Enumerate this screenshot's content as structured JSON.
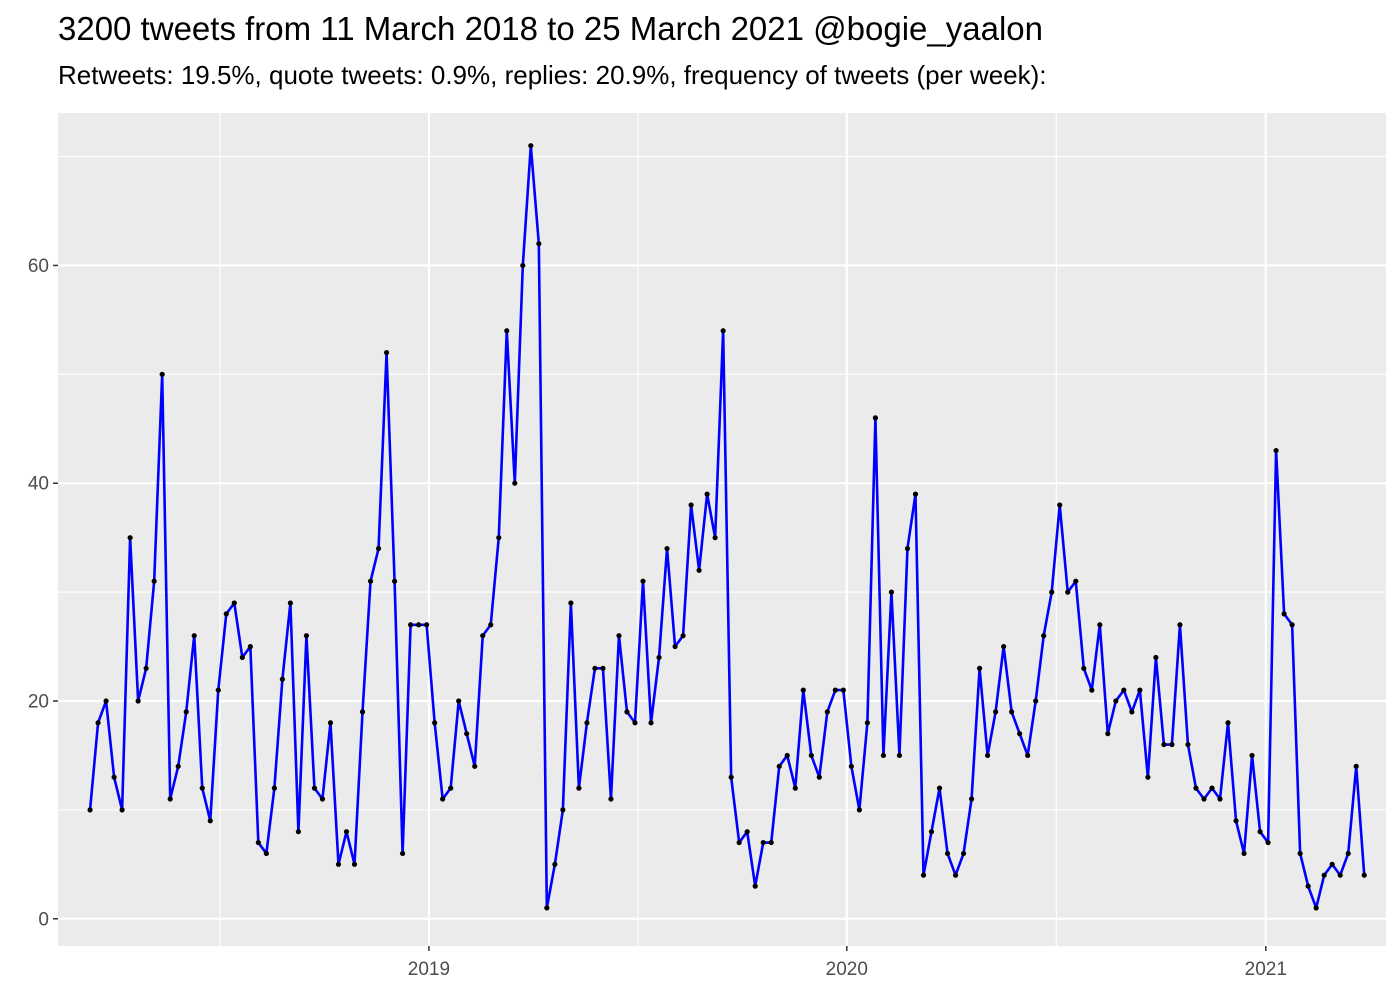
{
  "chart_data": {
    "type": "line",
    "title": "3200 tweets from 11 March 2018 to 25 March 2021 @bogie_yaalon",
    "subtitle": "Retweets: 19.5%, quote tweets: 0.9%, replies: 20.9%, frequency of tweets (per week):",
    "xlabel": "",
    "ylabel": "",
    "x_start": "2018-03-11",
    "x_step_days": 7,
    "xlim": [
      "2018-02-11",
      "2021-04-16"
    ],
    "x_ticks": [
      {
        "date": "2019-01-01",
        "label": "2019"
      },
      {
        "date": "2020-01-01",
        "label": "2020"
      },
      {
        "date": "2021-01-01",
        "label": "2021"
      }
    ],
    "ylim": [
      -2.5,
      74
    ],
    "y_ticks": [
      0,
      20,
      40,
      60
    ],
    "grid": true,
    "colors": {
      "line": "#0000ff",
      "points": "#000000",
      "panel": "#ebebeb",
      "grid": "#ffffff"
    },
    "values": [
      10,
      18,
      20,
      13,
      10,
      35,
      20,
      23,
      31,
      50,
      11,
      14,
      19,
      26,
      12,
      9,
      21,
      28,
      29,
      24,
      25,
      7,
      6,
      12,
      22,
      29,
      8,
      26,
      12,
      11,
      18,
      5,
      8,
      5,
      19,
      31,
      34,
      52,
      31,
      6,
      27,
      27,
      27,
      18,
      11,
      12,
      20,
      17,
      14,
      26,
      27,
      35,
      54,
      40,
      60,
      71,
      62,
      1,
      5,
      10,
      29,
      12,
      18,
      23,
      23,
      11,
      26,
      19,
      18,
      31,
      18,
      24,
      34,
      25,
      26,
      38,
      32,
      39,
      35,
      54,
      13,
      7,
      8,
      3,
      7,
      7,
      14,
      15,
      12,
      21,
      15,
      13,
      19,
      21,
      21,
      14,
      10,
      18,
      46,
      15,
      30,
      15,
      34,
      39,
      4,
      8,
      12,
      6,
      4,
      6,
      11,
      23,
      15,
      19,
      25,
      19,
      17,
      15,
      20,
      26,
      30,
      38,
      30,
      31,
      23,
      21,
      27,
      17,
      20,
      21,
      19,
      21,
      13,
      24,
      16,
      16,
      27,
      16,
      12,
      11,
      12,
      11,
      18,
      9,
      6,
      15,
      8,
      7,
      43,
      28,
      27,
      6,
      3,
      1,
      4,
      5,
      4,
      6,
      14,
      4
    ]
  }
}
